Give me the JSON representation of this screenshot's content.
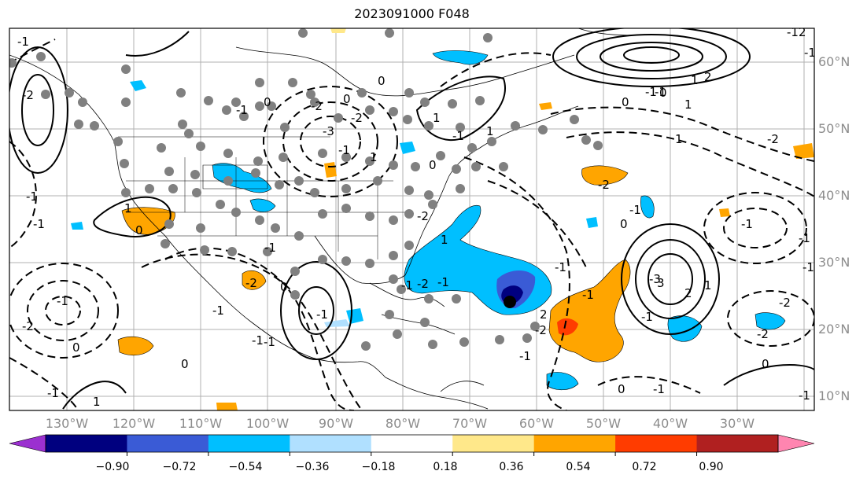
{
  "title": "2023091000 F048",
  "lon_ticks": [
    "130°W",
    "120°W",
    "110°W",
    "100°W",
    "90°W",
    "80°W",
    "70°W",
    "60°W",
    "50°W",
    "40°W",
    "30°W"
  ],
  "lat_ticks": [
    "60°N",
    "50°N",
    "40°N",
    "30°N",
    "20°N",
    "10°N"
  ],
  "colorbar": {
    "levels": [
      "−0.90",
      "−0.72",
      "−0.54",
      "−0.36",
      "−0.18",
      "0.18",
      "0.36",
      "0.54",
      "0.72",
      "0.90"
    ],
    "colors": [
      "#9b30d0",
      "#00007f",
      "#3a5bd6",
      "#00bfff",
      "#b0e0ff",
      "#ffffff",
      "#ffe88a",
      "#ffa500",
      "#ff3c00",
      "#b02020",
      "#ff85b0"
    ]
  },
  "contour_labels": [
    "-1",
    "-2",
    "-1",
    "1",
    "-1",
    "0",
    "-1",
    "0",
    "1",
    "0",
    "-3",
    "-2",
    "-1",
    "1",
    "0",
    "-1",
    "1",
    "-2",
    "-1",
    "-1",
    "0",
    "-1",
    "-2",
    "-1",
    "-3",
    "-1",
    "-2",
    "-1",
    "0",
    "-1",
    "-2",
    "-1",
    "0",
    "-1",
    "-2",
    "1",
    "-1",
    "2",
    "-12",
    "1",
    "0",
    "-1",
    "1",
    "0",
    "-1",
    "-2",
    "-2",
    "-1",
    "3",
    "2",
    "1",
    "-1",
    "-1",
    "-1",
    "-2",
    "-2",
    "0",
    "1",
    "-1",
    "-1",
    "-2",
    "-1",
    "0",
    "1",
    "0",
    "-1",
    "2",
    "0",
    "-1",
    "-1"
  ],
  "field_colors": {
    "contour": "#000000",
    "station": "#808080",
    "grid": "#b0b0b0"
  }
}
